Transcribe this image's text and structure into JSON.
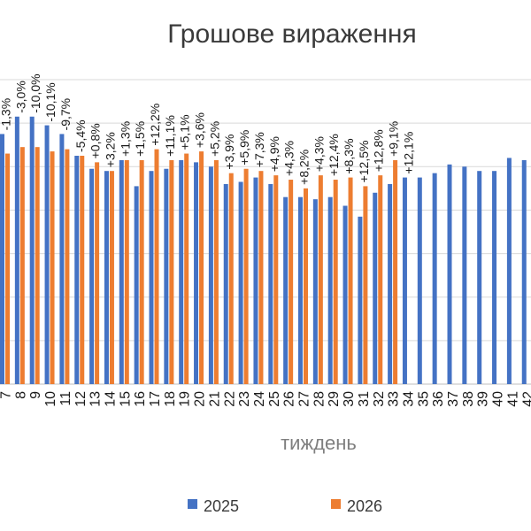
{
  "chart_data": {
    "type": "bar",
    "title": "Грошове вираження",
    "xlabel": "тиждень",
    "ylabel": "",
    "grid": true,
    "legend_position": "bottom",
    "categories": [
      "7",
      "8",
      "9",
      "10",
      "11",
      "12",
      "13",
      "14",
      "15",
      "16",
      "17",
      "18",
      "19",
      "20",
      "21",
      "22",
      "23",
      "24",
      "25",
      "26",
      "27",
      "28",
      "29",
      "30",
      "31",
      "32",
      "33",
      "34",
      "35",
      "36",
      "37",
      "38",
      "39",
      "40",
      "41",
      "42"
    ],
    "series": [
      {
        "name": "2025",
        "color": "#4472C4",
        "values": [
          1.15,
          1.23,
          1.23,
          1.19,
          1.15,
          1.05,
          0.99,
          0.98,
          1.03,
          0.91,
          0.98,
          0.99,
          1.03,
          1.02,
          1.0,
          0.92,
          0.93,
          0.95,
          0.92,
          0.86,
          0.86,
          0.85,
          0.86,
          0.82,
          0.77,
          0.88,
          0.92,
          0.95,
          0.95,
          0.97,
          1.01,
          1.0,
          0.98,
          0.98,
          1.04,
          1.03
        ]
      },
      {
        "name": "2026",
        "color": "#ED7D31",
        "values": [
          1.06,
          1.09,
          1.09,
          1.07,
          1.08,
          1.05,
          1.02,
          0.98,
          1.03,
          1.03,
          1.08,
          1.03,
          1.06,
          1.07,
          1.03,
          0.97,
          0.99,
          0.98,
          0.96,
          0.94,
          0.9,
          0.96,
          0.94,
          0.95,
          0.91,
          0.96,
          1.03,
          null,
          null,
          null,
          null,
          null,
          null,
          null,
          null,
          null
        ]
      }
    ],
    "data_labels": [
      "-1,3%",
      "-3,0%",
      "-10,0%",
      "-10,1%",
      "-9,7%",
      "-5,4%",
      "+0,8%",
      "+3,2%",
      "+1,3%",
      "+1,5%",
      "+12,2%",
      "+11,1%",
      "+5,1%",
      "+3,6%",
      "+5,2%",
      "+3,9%",
      "+5,9%",
      "+7,3%",
      "+4,9%",
      "+4,3%",
      "+8,2%",
      "+4,3%",
      "+12,4%",
      "+8,3%",
      "+12,5%",
      "+12,8%",
      "+9,1%",
      "+12,1%"
    ],
    "ylim": [
      0,
      1.4
    ]
  }
}
